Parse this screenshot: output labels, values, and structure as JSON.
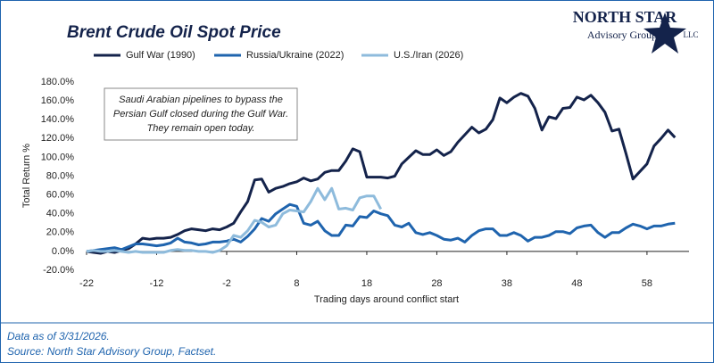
{
  "chart_data": {
    "type": "line",
    "title": "Brent Crude Oil Spot Price",
    "logo": {
      "name": "North Star",
      "subtitle": "Advisory Group",
      "suffix": "LLC"
    },
    "annotation": [
      "Saudi Arabian pipelines to bypass the",
      "Persian Gulf closed during the Gulf War.",
      "They remain open today."
    ],
    "xlabel": "Trading days around conflict start",
    "ylabel": "Total Return %",
    "footnotes": [
      "Data as of 3/31/2026.",
      "Source: North Star Advisory Group, Factset."
    ],
    "x": [
      -22,
      -21,
      -20,
      -19,
      -18,
      -17,
      -16,
      -15,
      -14,
      -13,
      -12,
      -11,
      -10,
      -9,
      -8,
      -7,
      -6,
      -5,
      -4,
      -3,
      -2,
      -1,
      0,
      1,
      2,
      3,
      4,
      5,
      6,
      7,
      8,
      9,
      10,
      11,
      12,
      13,
      14,
      15,
      16,
      17,
      18,
      19,
      20,
      21,
      22,
      23,
      24,
      25,
      26,
      27,
      28,
      29,
      30,
      31,
      32,
      33,
      34,
      35,
      36,
      37,
      38,
      39,
      40,
      41,
      42,
      43,
      44,
      45,
      46,
      47,
      48,
      49,
      50,
      51,
      52,
      53,
      54,
      55,
      56,
      57,
      58,
      59,
      60,
      61,
      62
    ],
    "series": [
      {
        "name": "Gulf War (1990)",
        "color": "#14234b",
        "values": [
          0,
          -1,
          -2,
          0,
          -1,
          1,
          3,
          8,
          14,
          13,
          14,
          14,
          15,
          18,
          22,
          24,
          23,
          22,
          24,
          23,
          26,
          30,
          42,
          53,
          76,
          77,
          63,
          67,
          69,
          72,
          74,
          78,
          75,
          77,
          84,
          86,
          86,
          96,
          109,
          106,
          79,
          79,
          79,
          78,
          80,
          93,
          100,
          107,
          103,
          103,
          108,
          102,
          106,
          116,
          124,
          132,
          126,
          130,
          140,
          163,
          158,
          164,
          168,
          165,
          152,
          129,
          143,
          141,
          152,
          153,
          164,
          161,
          166,
          158,
          148,
          128,
          130,
          104,
          77,
          85,
          93,
          112,
          120,
          129,
          121
        ]
      },
      {
        "name": "Russia/Ukraine (2022)",
        "color": "#1f64ae",
        "values": [
          0,
          1,
          2,
          3,
          4,
          2,
          5,
          8,
          8,
          7,
          6,
          7,
          9,
          14,
          10,
          9,
          7,
          8,
          10,
          10,
          11,
          13,
          10,
          16,
          24,
          35,
          32,
          40,
          45,
          50,
          48,
          30,
          28,
          32,
          22,
          17,
          17,
          28,
          27,
          37,
          36,
          43,
          40,
          38,
          28,
          26,
          30,
          20,
          18,
          20,
          17,
          13,
          12,
          14,
          10,
          17,
          22,
          24,
          24,
          17,
          17,
          20,
          17,
          11,
          15,
          15,
          17,
          21,
          21,
          19,
          25,
          27,
          28,
          20,
          15,
          20,
          20,
          25,
          29,
          27,
          24,
          27,
          27,
          29,
          30
        ]
      },
      {
        "name": "U.S./Iran (2026)",
        "color": "#8ebbdc",
        "values": [
          0,
          1,
          0,
          0,
          1,
          0,
          -1,
          0,
          -1,
          -1,
          -1,
          -1,
          1,
          2,
          1,
          1,
          0,
          0,
          -1,
          1,
          6,
          17,
          15,
          22,
          33,
          31,
          26,
          28,
          40,
          44,
          43,
          42,
          53,
          67,
          55,
          67,
          45,
          46,
          44,
          57,
          59,
          59,
          45,
          null,
          null,
          null,
          null,
          null,
          null,
          null,
          null,
          null,
          null,
          null,
          null,
          null,
          null,
          null,
          null,
          null,
          null,
          null,
          null,
          null,
          null,
          null,
          null,
          null,
          null,
          null,
          null,
          null,
          null,
          null,
          null,
          null,
          null,
          null,
          null,
          null,
          null,
          null,
          null,
          null,
          null
        ]
      }
    ],
    "xlim": [
      -22,
      64
    ],
    "xticks": [
      -22,
      -12,
      -2,
      8,
      18,
      28,
      38,
      48,
      58
    ],
    "ylim": [
      -20,
      180
    ],
    "yticks": [
      {
        "value": -20,
        "label": "-20.0%"
      },
      {
        "value": 0,
        "label": "0.0%"
      },
      {
        "value": 20,
        "label": "20.0%"
      },
      {
        "value": 40,
        "label": "40.0%"
      },
      {
        "value": 60,
        "label": "60.0%"
      },
      {
        "value": 80,
        "label": "80.0%"
      },
      {
        "value": 100,
        "label": "100.0%"
      },
      {
        "value": 120,
        "label": "120.0%"
      },
      {
        "value": 140,
        "label": "140.0%"
      },
      {
        "value": 160,
        "label": "160.0%"
      },
      {
        "value": 180,
        "label": "180.0%"
      }
    ],
    "grid": false,
    "legend": "top"
  }
}
